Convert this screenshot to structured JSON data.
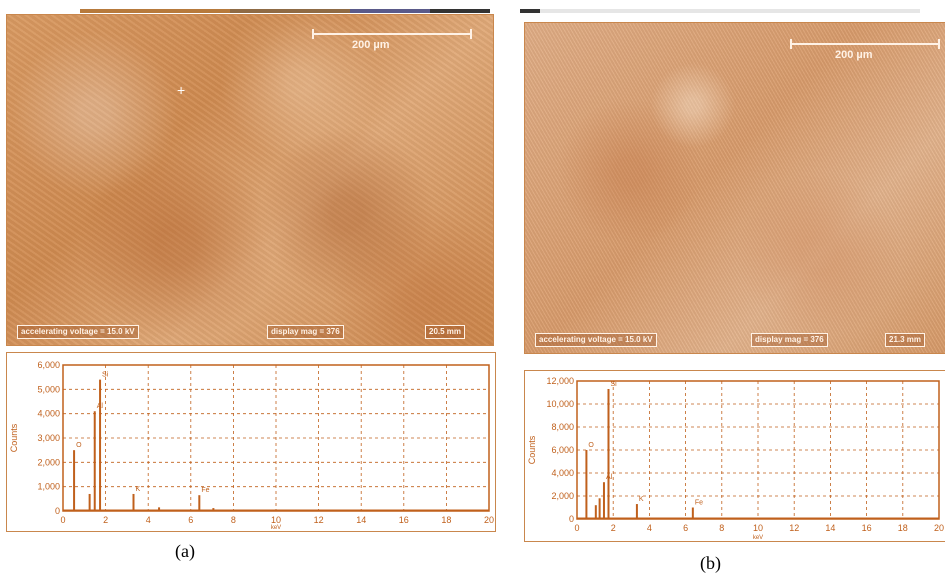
{
  "panels": [
    {
      "id": "a",
      "caption": "(a)",
      "scale_bar": "200 µm",
      "accel_voltage": "accelerating voltage = 15.0 kV",
      "display_mag": "display mag = 376",
      "working_distance": "20.5 mm",
      "colors": {
        "image": "#d48f56",
        "trace": "#c0601c",
        "grid": "#c0601c",
        "text": "#c0601c"
      },
      "chart_data": {
        "type": "bar",
        "title": "",
        "xlabel": "keV",
        "ylabel": "Counts",
        "xlim": [
          0,
          20
        ],
        "ylim": [
          0,
          6000
        ],
        "xticks": [
          0,
          2,
          4,
          6,
          8,
          10,
          12,
          14,
          16,
          18,
          20
        ],
        "yticks": [
          0,
          1000,
          2000,
          3000,
          4000,
          5000,
          6000
        ],
        "ytick_labels": [
          "0",
          "1,000",
          "2,000",
          "3,000",
          "4,000",
          "5,000",
          "6,000"
        ],
        "peaks": [
          {
            "x": 0.52,
            "y": 2500,
            "label": "O"
          },
          {
            "x": 1.25,
            "y": 700,
            "label": ""
          },
          {
            "x": 1.49,
            "y": 4100,
            "label": "Al"
          },
          {
            "x": 1.74,
            "y": 5400,
            "label": "Si"
          },
          {
            "x": 3.31,
            "y": 700,
            "label": "K"
          },
          {
            "x": 4.51,
            "y": 150,
            "label": ""
          },
          {
            "x": 6.4,
            "y": 650,
            "label": "Fe"
          },
          {
            "x": 7.06,
            "y": 120,
            "label": ""
          }
        ]
      }
    },
    {
      "id": "b",
      "caption": "(b)",
      "scale_bar": "200 µm",
      "accel_voltage": "accelerating voltage = 15.0 kV",
      "display_mag": "display mag = 376",
      "working_distance": "21.3 mm",
      "colors": {
        "image": "#dda373",
        "trace": "#c0601c",
        "grid": "#c0601c",
        "text": "#c0601c"
      },
      "chart_data": {
        "type": "bar",
        "title": "",
        "xlabel": "keV",
        "ylabel": "Counts",
        "xlim": [
          0,
          20
        ],
        "ylim": [
          0,
          12000
        ],
        "xticks": [
          0,
          2,
          4,
          6,
          8,
          10,
          12,
          14,
          16,
          18,
          20
        ],
        "yticks": [
          0,
          2000,
          4000,
          6000,
          8000,
          10000,
          12000
        ],
        "ytick_labels": [
          "0",
          "2,000",
          "4,000",
          "6,000",
          "8,000",
          "10,000",
          "12,000"
        ],
        "peaks": [
          {
            "x": 0.52,
            "y": 6000,
            "label": "O"
          },
          {
            "x": 1.04,
            "y": 1200,
            "label": ""
          },
          {
            "x": 1.25,
            "y": 1800,
            "label": ""
          },
          {
            "x": 1.49,
            "y": 3200,
            "label": "Al"
          },
          {
            "x": 1.74,
            "y": 11300,
            "label": "Si"
          },
          {
            "x": 3.31,
            "y": 1300,
            "label": "K"
          },
          {
            "x": 6.4,
            "y": 1000,
            "label": "Fe"
          }
        ]
      }
    }
  ]
}
